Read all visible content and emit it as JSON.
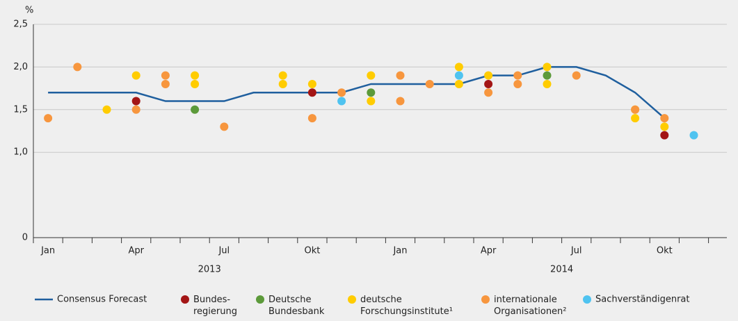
{
  "chart_data": {
    "type": "line",
    "y_label": "%",
    "categories": [
      "Jan",
      null,
      null,
      "Apr",
      null,
      null,
      "Jul",
      null,
      null,
      "Okt",
      null,
      null,
      "Jan",
      null,
      null,
      "Apr",
      null,
      null,
      "Jul",
      null,
      null,
      "Okt",
      null,
      null
    ],
    "year_labels": [
      "2013",
      "2014"
    ],
    "ylim": [
      0,
      2.5
    ],
    "yticks": [
      {
        "value": 0,
        "label": "0"
      },
      {
        "value": 1,
        "label": "1,0"
      },
      {
        "value": 1.5,
        "label": "1,5"
      },
      {
        "value": 2,
        "label": "2,0"
      },
      {
        "value": 2.5,
        "label": "2,5"
      }
    ],
    "grid": true,
    "series": [
      {
        "name": "Consensus Forecast",
        "type": "line",
        "color": "#1f5f9e",
        "values": [
          1.7,
          1.7,
          1.7,
          1.7,
          1.6,
          1.6,
          1.6,
          1.7,
          1.7,
          1.7,
          1.7,
          1.8,
          1.8,
          1.8,
          1.8,
          1.9,
          1.9,
          2.0,
          2.0,
          1.9,
          1.7,
          1.4,
          null,
          null
        ]
      },
      {
        "name": "Bundes-\nregierung",
        "type": "scatter",
        "color": "#a31515",
        "x": [
          3,
          9,
          15,
          21
        ],
        "values": [
          1.6,
          1.7,
          1.8,
          1.2
        ]
      },
      {
        "name": "Deutsche\nBundesbank",
        "type": "scatter",
        "color": "#5c9a3a",
        "x": [
          5,
          11,
          17
        ],
        "values": [
          1.5,
          1.7,
          1.9
        ]
      },
      {
        "name": "deutsche\nForschungsinstitute¹",
        "type": "scatter",
        "color": "#ffcc00",
        "x": [
          2,
          3,
          5,
          5,
          8,
          8,
          9,
          11,
          11,
          14,
          14,
          15,
          17,
          17,
          20,
          20,
          21
        ],
        "values": [
          1.5,
          1.9,
          1.9,
          1.8,
          1.9,
          1.8,
          1.8,
          1.9,
          1.6,
          2.0,
          1.8,
          1.9,
          2.0,
          1.8,
          1.5,
          1.4,
          1.3
        ]
      },
      {
        "name": "internationale\nOrganisationen²",
        "type": "scatter",
        "color": "#f7963e",
        "x": [
          0,
          1,
          3,
          4,
          4,
          6,
          9,
          10,
          12,
          12,
          13,
          15,
          16,
          16,
          18,
          20,
          21
        ],
        "values": [
          1.4,
          2.0,
          1.5,
          1.9,
          1.8,
          1.3,
          1.4,
          1.7,
          1.9,
          1.6,
          1.8,
          1.7,
          1.9,
          1.8,
          1.9,
          1.5,
          1.4
        ]
      },
      {
        "name": "Sachverständigenrat",
        "type": "scatter",
        "color": "#4fc3f0",
        "x": [
          10,
          14,
          22
        ],
        "values": [
          1.6,
          1.9,
          1.2
        ]
      }
    ]
  }
}
